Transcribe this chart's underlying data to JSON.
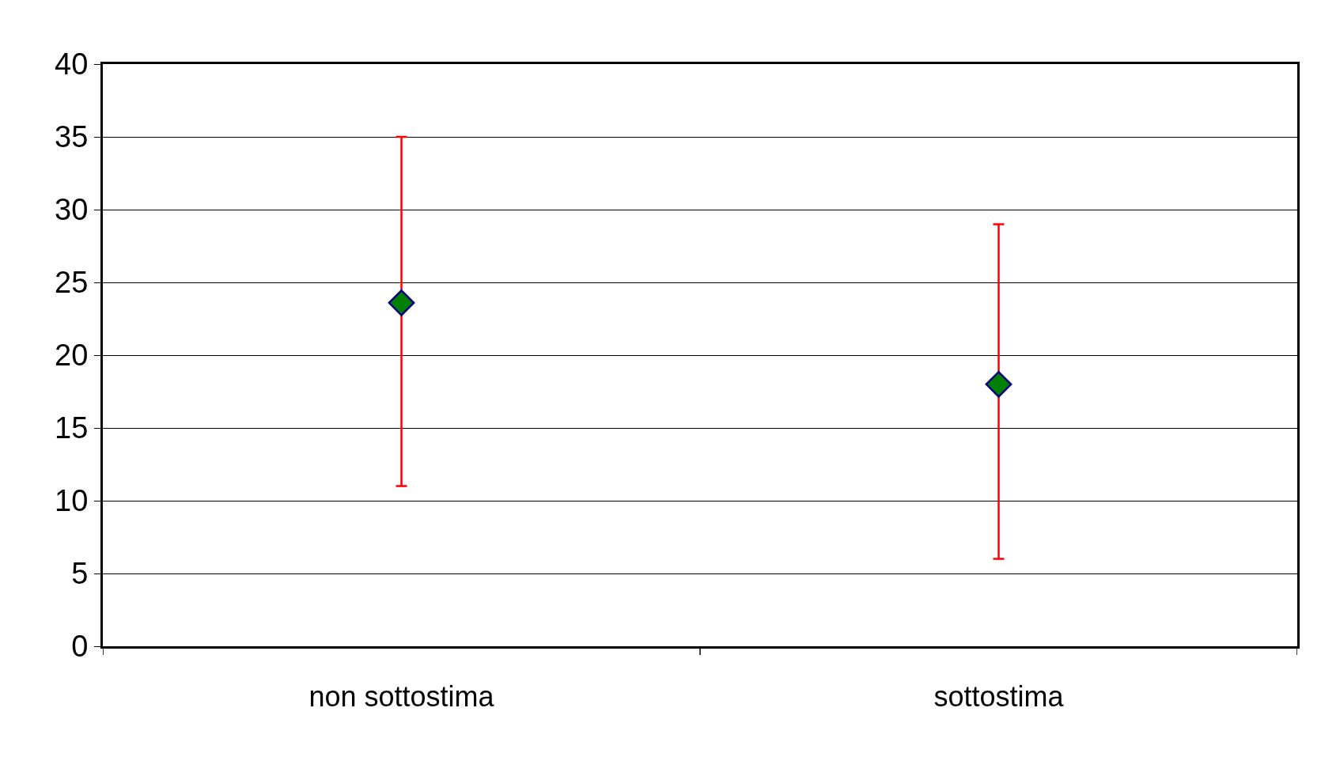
{
  "chart_data": {
    "type": "scatter",
    "categories": [
      "non sottostima",
      "sottostima"
    ],
    "series": [
      {
        "color": "#008000",
        "values": [
          23.6,
          18
        ],
        "errors": [
          [
            11,
            35
          ],
          [
            6,
            29
          ]
        ]
      }
    ],
    "marker": "diamond",
    "ylim": [
      0,
      40
    ],
    "yticks": [
      0,
      5,
      10,
      15,
      20,
      25,
      30,
      35,
      40
    ],
    "grid": "y"
  }
}
